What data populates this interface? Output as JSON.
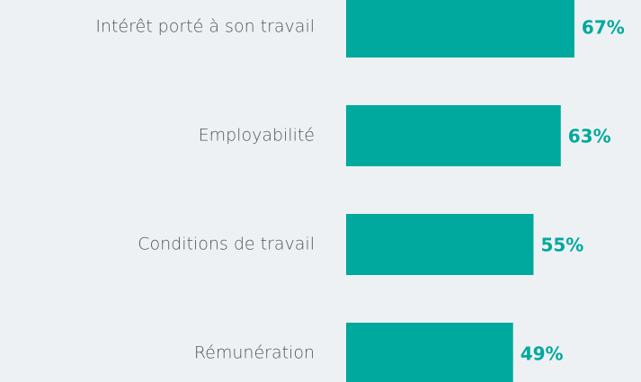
{
  "chart_data": {
    "type": "bar",
    "orientation": "horizontal",
    "categories": [
      "Intérêt porté à son travail",
      "Employabilité",
      "Conditions de travail",
      "Rémunération"
    ],
    "values": [
      67,
      63,
      55,
      49
    ],
    "value_labels": [
      "67%",
      "63%",
      "55%",
      "49%"
    ],
    "color": "#00a99d"
  }
}
